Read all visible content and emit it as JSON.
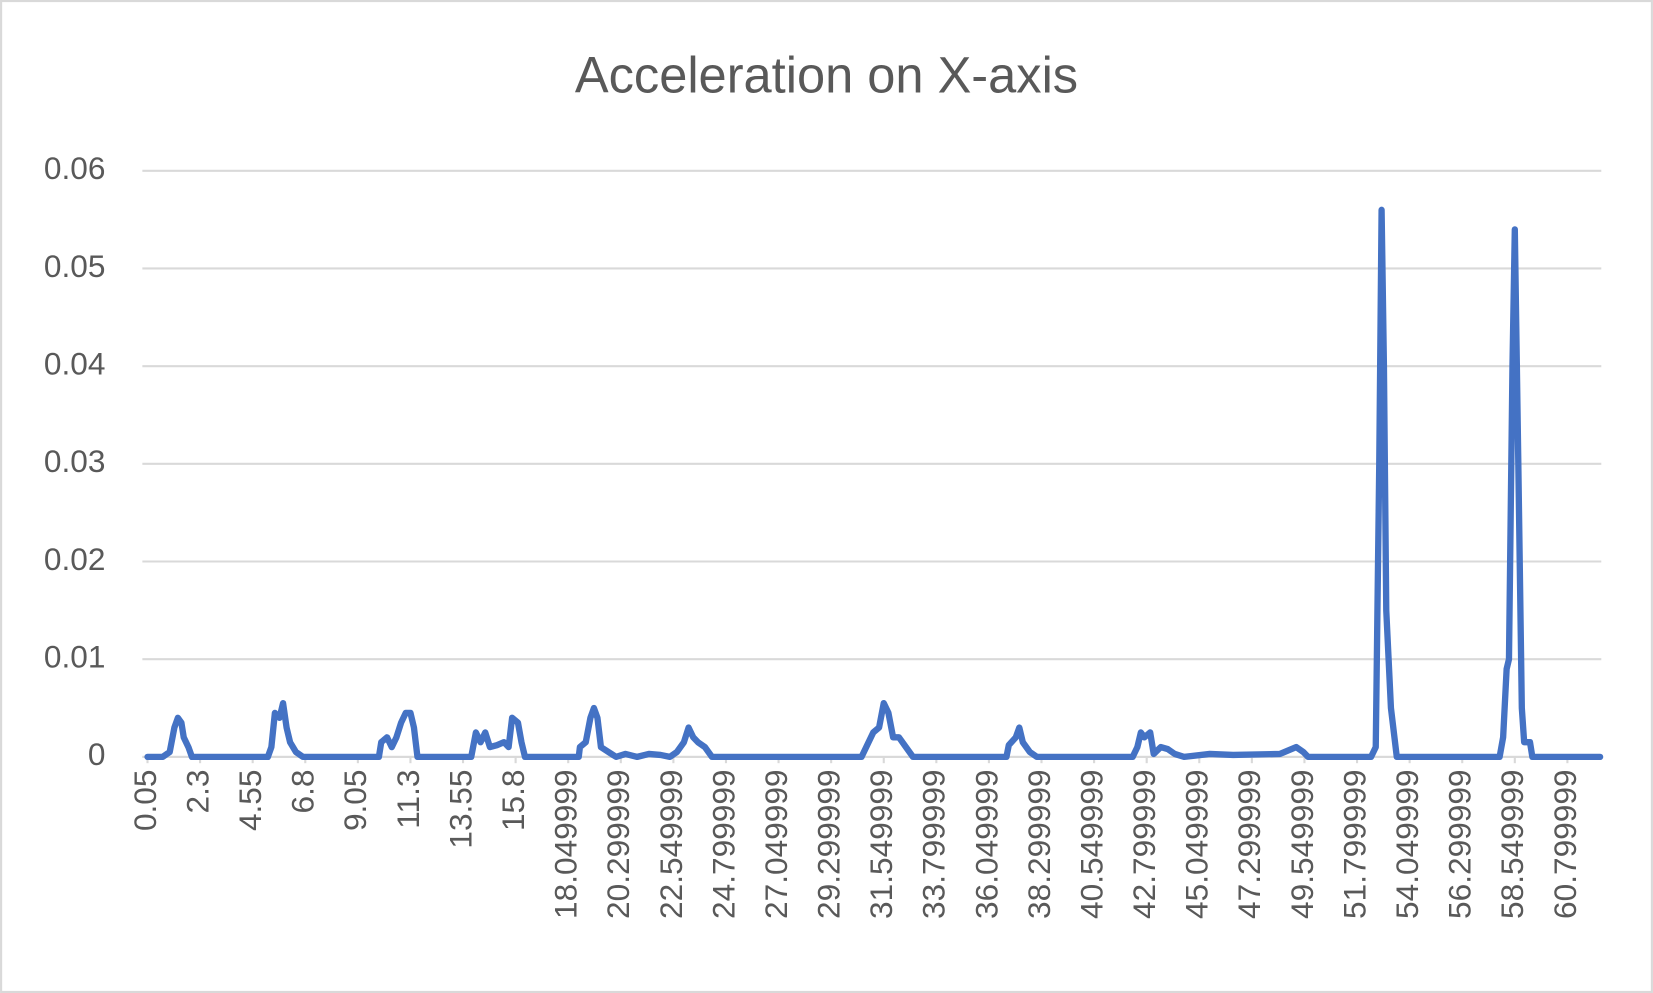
{
  "chart_data": {
    "type": "line",
    "title": "Acceleration on X-axis",
    "x": [
      0.05,
      0.7,
      1.0,
      1.2,
      1.35,
      1.5,
      1.6,
      1.8,
      1.95,
      5.2,
      5.35,
      5.5,
      5.7,
      5.85,
      6.0,
      6.15,
      6.4,
      6.7,
      9.95,
      10.05,
      10.3,
      10.5,
      10.7,
      10.9,
      11.1,
      11.3,
      11.45,
      11.6,
      13.9,
      14.1,
      14.3,
      14.5,
      14.7,
      15.0,
      15.3,
      15.5,
      15.65,
      15.9,
      16.05,
      16.2,
      18.5,
      18.55,
      18.8,
      19.0,
      19.15,
      19.3,
      19.45,
      19.9,
      20.1,
      20.5,
      21.0,
      21.5,
      22.0,
      22.4,
      22.7,
      23.0,
      23.2,
      23.4,
      23.6,
      23.9,
      24.2,
      30.6,
      30.8,
      31.1,
      31.35,
      31.55,
      31.75,
      31.95,
      32.2,
      32.5,
      32.8,
      36.8,
      36.9,
      37.2,
      37.35,
      37.5,
      37.8,
      38.1,
      42.2,
      42.4,
      42.55,
      42.7,
      42.95,
      43.1,
      43.4,
      43.7,
      44.0,
      44.4,
      45.5,
      46.5,
      48.5,
      49.2,
      49.5,
      49.7,
      52.4,
      52.6,
      52.75,
      52.85,
      52.95,
      53.05,
      53.25,
      53.5,
      57.9,
      58.05,
      58.2,
      58.3,
      58.45,
      58.55,
      58.7,
      58.85,
      58.95,
      59.2,
      59.3,
      62.2
    ],
    "series": [
      {
        "name": "Acceleration",
        "color": "#4472c4",
        "values": [
          0,
          0,
          0.0005,
          0.003,
          0.004,
          0.0035,
          0.002,
          0.001,
          0,
          0,
          0.001,
          0.0045,
          0.004,
          0.0055,
          0.003,
          0.0015,
          0.0005,
          0,
          0,
          0.0015,
          0.002,
          0.001,
          0.002,
          0.0035,
          0.0045,
          0.0045,
          0.003,
          0,
          0,
          0.0025,
          0.0015,
          0.0025,
          0.001,
          0.0012,
          0.0015,
          0.001,
          0.004,
          0.0035,
          0.0015,
          0,
          0,
          0.001,
          0.0015,
          0.004,
          0.005,
          0.004,
          0.001,
          0.0003,
          0,
          0.0003,
          0,
          0.0003,
          0.0002,
          0,
          0.0005,
          0.0015,
          0.003,
          0.002,
          0.0015,
          0.001,
          0,
          0,
          0.001,
          0.0025,
          0.003,
          0.0055,
          0.0045,
          0.002,
          0.002,
          0.001,
          0,
          0,
          0.0012,
          0.002,
          0.003,
          0.0015,
          0.0005,
          0,
          0,
          0.001,
          0.0025,
          0.002,
          0.0025,
          0.0003,
          0.001,
          0.0008,
          0.0003,
          0,
          0.0003,
          0.0002,
          0.0003,
          0.001,
          0.0005,
          0,
          0,
          0.001,
          0.03,
          0.056,
          0.04,
          0.015,
          0.005,
          0,
          0,
          0.002,
          0.009,
          0.01,
          0.04,
          0.054,
          0.03,
          0.005,
          0.0015,
          0.0015,
          0,
          0
        ]
      }
    ],
    "xlim": [
      -0.17,
      62.25
    ],
    "xticks": [
      0.05,
      2.3,
      4.55,
      6.8,
      9.05,
      11.3,
      13.55,
      15.8,
      18.049999,
      20.299999,
      22.549999,
      24.799999,
      27.049999,
      29.299999,
      31.549999,
      33.799999,
      36.049999,
      38.299999,
      40.549999,
      42.799999,
      45.049999,
      47.299999,
      49.549999,
      51.799999,
      54.049999,
      56.299999,
      58.549999,
      60.799999
    ],
    "ylim": [
      0,
      0.06
    ],
    "yticks": [
      0,
      0.01,
      0.02,
      0.03,
      0.04,
      0.05,
      0.06
    ],
    "grid": true
  }
}
